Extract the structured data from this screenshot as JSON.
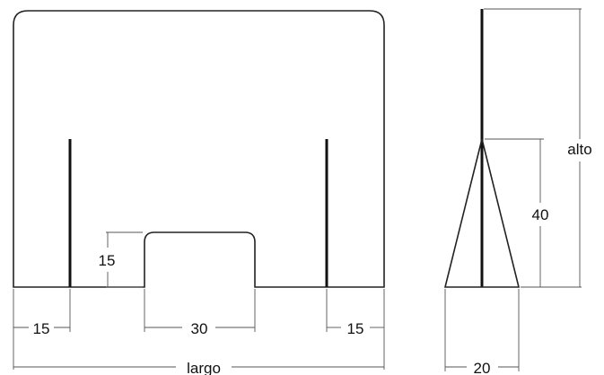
{
  "drawing": {
    "front_view": {
      "dim_left": "15",
      "dim_middle": "30",
      "dim_right": "15",
      "dim_opening_height": "15",
      "dim_width": "largo"
    },
    "side_view": {
      "dim_support_height": "40",
      "dim_height": "alto",
      "dim_base": "20"
    },
    "colors": {
      "panel_outline": "#222222",
      "dimension_line": "#555555",
      "support": "#111111"
    }
  }
}
